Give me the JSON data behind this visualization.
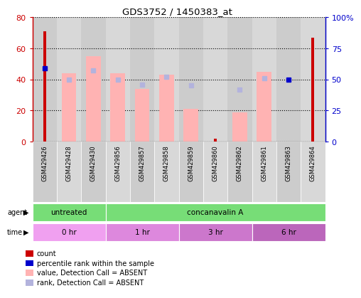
{
  "title": "GDS3752 / 1450383_at",
  "samples": [
    "GSM429426",
    "GSM429428",
    "GSM429430",
    "GSM429856",
    "GSM429857",
    "GSM429858",
    "GSM429859",
    "GSM429860",
    "GSM429862",
    "GSM429861",
    "GSM429863",
    "GSM429864"
  ],
  "count_values": [
    71,
    0,
    0,
    0,
    0,
    0,
    0,
    2,
    0,
    0,
    0,
    67
  ],
  "count_color": "#cc0000",
  "value_absent": [
    0,
    44,
    55,
    44,
    34,
    43,
    21,
    0,
    19,
    45,
    0,
    0
  ],
  "value_absent_color": "#ffb3b3",
  "rank_absent": [
    0,
    50,
    57,
    50,
    46,
    52,
    45,
    0,
    42,
    51,
    0,
    0
  ],
  "rank_absent_color": "#b3b3dd",
  "percentile_rank": [
    59,
    0,
    0,
    0,
    0,
    0,
    0,
    0,
    0,
    0,
    50,
    0
  ],
  "percentile_rank_color": "#0000cc",
  "ylim_left": [
    0,
    80
  ],
  "ylim_right": [
    0,
    100
  ],
  "yticks_left": [
    0,
    20,
    40,
    60,
    80
  ],
  "yticks_right": [
    0,
    25,
    50,
    75,
    100
  ],
  "ytick_labels_right": [
    "0",
    "25",
    "50",
    "75",
    "100%"
  ],
  "left_axis_color": "#cc0000",
  "right_axis_color": "#0000cc",
  "agent_groups": [
    {
      "label": "untreated",
      "start": 0,
      "end": 3
    },
    {
      "label": "concanavalin A",
      "start": 3,
      "end": 12
    }
  ],
  "agent_color": "#77dd77",
  "time_groups": [
    {
      "label": "0 hr",
      "start": 0,
      "end": 3
    },
    {
      "label": "1 hr",
      "start": 3,
      "end": 6
    },
    {
      "label": "3 hr",
      "start": 6,
      "end": 9
    },
    {
      "label": "6 hr",
      "start": 9,
      "end": 12
    }
  ],
  "time_colors": [
    "#f0a0f0",
    "#dd88dd",
    "#cc77cc",
    "#bb66bb"
  ],
  "legend_items": [
    {
      "label": "count",
      "color": "#cc0000"
    },
    {
      "label": "percentile rank within the sample",
      "color": "#0000cc"
    },
    {
      "label": "value, Detection Call = ABSENT",
      "color": "#ffb3b3"
    },
    {
      "label": "rank, Detection Call = ABSENT",
      "color": "#b3b3dd"
    }
  ],
  "sample_col_colors": [
    "#cccccc",
    "#d8d8d8"
  ]
}
